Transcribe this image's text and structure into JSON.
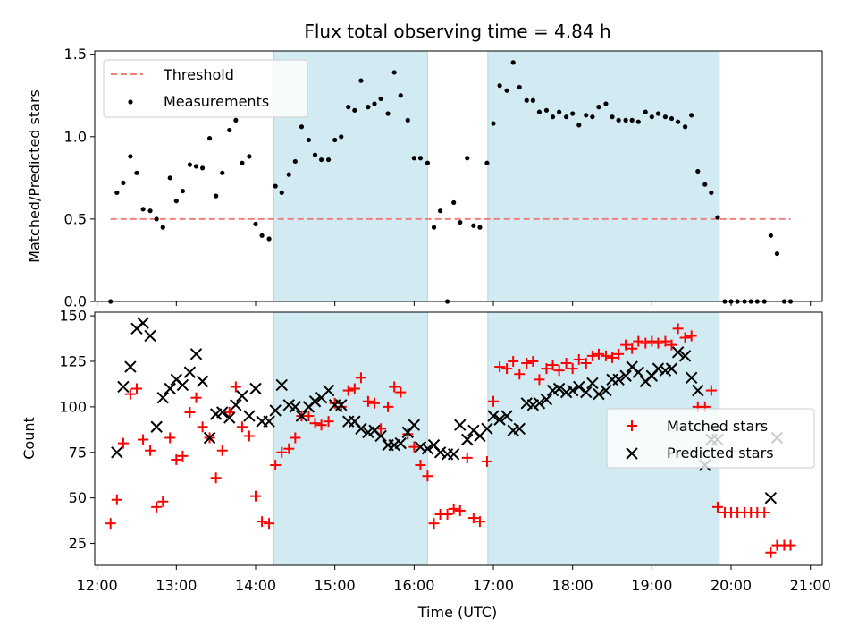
{
  "chart_data": {
    "title": "Flux total observing time = 4.84 h",
    "xlabel": "Time (UTC)",
    "x_unit": "hours UTC",
    "xlim": [
      11.97,
      21.15
    ],
    "x_ticks": [
      {
        "value": 12,
        "label": "12:00"
      },
      {
        "value": 13,
        "label": "13:00"
      },
      {
        "value": 14,
        "label": "14:00"
      },
      {
        "value": 15,
        "label": "15:00"
      },
      {
        "value": 16,
        "label": "16:00"
      },
      {
        "value": 17,
        "label": "17:00"
      },
      {
        "value": 18,
        "label": "18:00"
      },
      {
        "value": 19,
        "label": "19:00"
      },
      {
        "value": 20,
        "label": "20:00"
      },
      {
        "value": 21,
        "label": "21:00"
      }
    ],
    "shaded_intervals": [
      [
        14.23,
        16.17
      ],
      [
        16.93,
        19.85
      ]
    ],
    "shade_color": "#add8e6",
    "panels": [
      {
        "type": "scatter",
        "ylabel": "Matched/Predicted stars",
        "ylim": [
          0,
          1.52
        ],
        "y_ticks": [
          {
            "value": 0,
            "label": "0.0"
          },
          {
            "value": 0.5,
            "label": "0.5"
          },
          {
            "value": 1.0,
            "label": "1.0"
          },
          {
            "value": 1.5,
            "label": "1.5"
          }
        ],
        "legend_position": "upper-left",
        "threshold": {
          "name": "Threshold",
          "y": 0.5,
          "x_range": [
            12.17,
            20.75
          ],
          "color": "#f08080"
        },
        "series": [
          {
            "name": "Measurements",
            "marker": "dot",
            "color": "#000000",
            "x": [
              12.17,
              12.25,
              12.33,
              12.42,
              12.5,
              12.58,
              12.67,
              12.75,
              12.83,
              12.92,
              13.0,
              13.08,
              13.17,
              13.25,
              13.33,
              13.42,
              13.5,
              13.58,
              13.67,
              13.75,
              13.83,
              13.92,
              14.0,
              14.08,
              14.17,
              14.25,
              14.33,
              14.42,
              14.5,
              14.58,
              14.67,
              14.75,
              14.83,
              14.92,
              15.0,
              15.08,
              15.17,
              15.25,
              15.33,
              15.42,
              15.5,
              15.58,
              15.67,
              15.75,
              15.83,
              15.92,
              16.0,
              16.08,
              16.17,
              16.25,
              16.33,
              16.42,
              16.5,
              16.58,
              16.67,
              16.75,
              16.83,
              16.92,
              17.0,
              17.08,
              17.17,
              17.25,
              17.33,
              17.42,
              17.5,
              17.58,
              17.67,
              17.75,
              17.83,
              17.92,
              18.0,
              18.08,
              18.17,
              18.25,
              18.33,
              18.42,
              18.5,
              18.58,
              18.67,
              18.75,
              18.83,
              18.92,
              19.0,
              19.08,
              19.17,
              19.25,
              19.33,
              19.42,
              19.5,
              19.58,
              19.67,
              19.75,
              19.83,
              19.92,
              20.0,
              20.08,
              20.17,
              20.25,
              20.33,
              20.42,
              20.5,
              20.58,
              20.67,
              20.75
            ],
            "y": [
              0.0,
              0.66,
              0.72,
              0.88,
              0.78,
              0.56,
              0.55,
              0.5,
              0.45,
              0.75,
              0.61,
              0.67,
              0.83,
              0.82,
              0.81,
              0.99,
              0.64,
              0.78,
              1.04,
              1.1,
              0.84,
              0.88,
              0.47,
              0.4,
              0.38,
              0.7,
              0.66,
              0.77,
              0.85,
              1.06,
              0.98,
              0.89,
              0.86,
              0.86,
              0.98,
              1.0,
              1.18,
              1.16,
              1.34,
              1.18,
              1.2,
              1.23,
              1.14,
              1.39,
              1.25,
              1.1,
              0.87,
              0.87,
              0.84,
              0.45,
              0.55,
              0.0,
              0.6,
              0.48,
              0.87,
              0.46,
              0.45,
              0.84,
              1.08,
              1.31,
              1.28,
              1.45,
              1.3,
              1.22,
              1.22,
              1.15,
              1.16,
              1.12,
              1.15,
              1.12,
              1.14,
              1.07,
              1.13,
              1.12,
              1.18,
              1.2,
              1.12,
              1.1,
              1.1,
              1.1,
              1.09,
              1.15,
              1.12,
              1.14,
              1.12,
              1.11,
              1.09,
              1.06,
              1.13,
              0.79,
              0.71,
              0.66,
              0.51,
              0.0,
              0.0,
              0.0,
              0.0,
              0.0,
              0.0,
              0.0,
              0.4,
              0.29,
              0.0,
              0.0
            ]
          }
        ]
      },
      {
        "type": "scatter",
        "ylabel": "Count",
        "ylim": [
          13,
          152
        ],
        "y_ticks": [
          {
            "value": 25,
            "label": "25"
          },
          {
            "value": 50,
            "label": "50"
          },
          {
            "value": 75,
            "label": "75"
          },
          {
            "value": 100,
            "label": "100"
          },
          {
            "value": 125,
            "label": "125"
          },
          {
            "value": 150,
            "label": "150"
          }
        ],
        "legend_position": "center-right",
        "series": [
          {
            "name": "Matched stars",
            "marker": "plus",
            "color": "#ff0000",
            "x": [
              12.17,
              12.25,
              12.33,
              12.42,
              12.5,
              12.58,
              12.67,
              12.75,
              12.83,
              12.92,
              13.0,
              13.08,
              13.17,
              13.25,
              13.33,
              13.42,
              13.5,
              13.58,
              13.67,
              13.75,
              13.83,
              13.92,
              14.0,
              14.08,
              14.17,
              14.25,
              14.33,
              14.42,
              14.5,
              14.58,
              14.67,
              14.75,
              14.83,
              14.92,
              15.0,
              15.08,
              15.17,
              15.25,
              15.33,
              15.42,
              15.5,
              15.58,
              15.67,
              15.75,
              15.83,
              15.92,
              16.0,
              16.08,
              16.17,
              16.25,
              16.33,
              16.42,
              16.5,
              16.58,
              16.67,
              16.75,
              16.83,
              16.92,
              17.0,
              17.08,
              17.17,
              17.25,
              17.33,
              17.42,
              17.5,
              17.58,
              17.67,
              17.75,
              17.83,
              17.92,
              18.0,
              18.08,
              18.17,
              18.25,
              18.33,
              18.42,
              18.5,
              18.58,
              18.67,
              18.75,
              18.83,
              18.92,
              19.0,
              19.08,
              19.17,
              19.25,
              19.33,
              19.42,
              19.5,
              19.58,
              19.67,
              19.75,
              19.83,
              19.92,
              20.0,
              20.08,
              20.17,
              20.25,
              20.33,
              20.42,
              20.5,
              20.58,
              20.67,
              20.75
            ],
            "y": [
              36,
              49,
              80,
              107,
              110,
              82,
              76,
              45,
              48,
              83,
              71,
              73,
              97,
              105,
              89,
              83,
              61,
              76,
              97,
              111,
              89,
              84,
              51,
              37,
              36,
              68,
              75,
              77,
              83,
              95,
              95,
              91,
              90,
              92,
              102,
              100,
              109,
              110,
              116,
              103,
              102,
              88,
              100,
              111,
              108,
              85,
              78,
              68,
              62,
              36,
              41,
              41,
              44,
              43,
              72,
              39,
              37,
              70,
              103,
              122,
              121,
              125,
              118,
              124,
              125,
              115,
              121,
              123,
              120,
              124,
              121,
              126,
              124,
              128,
              129,
              128,
              127,
              129,
              134,
              132,
              136,
              135,
              136,
              135,
              136,
              134,
              143,
              138,
              139,
              100,
              100,
              109,
              45,
              42,
              42,
              42,
              42,
              42,
              42,
              42,
              20,
              24,
              24,
              24
            ]
          },
          {
            "name": "Predicted stars",
            "marker": "cross",
            "color": "#000000",
            "x": [
              12.25,
              12.33,
              12.42,
              12.5,
              12.58,
              12.67,
              12.75,
              12.83,
              12.92,
              13.0,
              13.08,
              13.17,
              13.25,
              13.33,
              13.42,
              13.5,
              13.58,
              13.67,
              13.75,
              13.83,
              13.92,
              14.0,
              14.08,
              14.17,
              14.25,
              14.33,
              14.42,
              14.5,
              14.58,
              14.67,
              14.75,
              14.83,
              14.92,
              15.0,
              15.08,
              15.17,
              15.25,
              15.33,
              15.42,
              15.5,
              15.58,
              15.67,
              15.75,
              15.83,
              15.92,
              16.0,
              16.08,
              16.17,
              16.25,
              16.33,
              16.42,
              16.5,
              16.58,
              16.67,
              16.75,
              16.83,
              16.92,
              17.0,
              17.08,
              17.17,
              17.25,
              17.33,
              17.42,
              17.5,
              17.58,
              17.67,
              17.75,
              17.83,
              17.92,
              18.0,
              18.08,
              18.17,
              18.25,
              18.33,
              18.42,
              18.5,
              18.58,
              18.67,
              18.75,
              18.83,
              18.92,
              19.0,
              19.08,
              19.17,
              19.25,
              19.33,
              19.42,
              19.5,
              19.58,
              19.67,
              19.75,
              19.83,
              20.5,
              20.58
            ],
            "y": [
              75,
              111,
              122,
              143,
              146,
              139,
              89,
              105,
              110,
              115,
              112,
              119,
              129,
              114,
              83,
              96,
              97,
              94,
              101,
              106,
              95,
              110,
              92,
              92,
              98,
              112,
              101,
              100,
              95,
              100,
              103,
              105,
              109,
              101,
              101,
              92,
              92,
              88,
              86,
              87,
              84,
              79,
              79,
              80,
              86,
              90,
              78,
              77,
              79,
              75,
              74,
              74,
              90,
              82,
              87,
              84,
              88,
              95,
              93,
              95,
              87,
              88,
              102,
              101,
              102,
              104,
              109,
              110,
              108,
              109,
              111,
              108,
              113,
              107,
              109,
              115,
              115,
              117,
              122,
              119,
              114,
              117,
              121,
              120,
              121,
              130,
              128,
              116,
              109,
              68,
              82,
              82,
              50,
              83
            ]
          }
        ]
      }
    ]
  }
}
